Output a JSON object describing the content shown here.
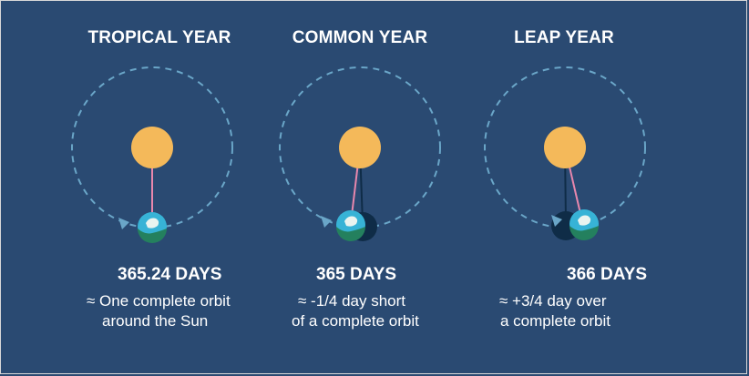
{
  "colors": {
    "background": "#2a4a72",
    "sun": "#f4b95a",
    "orbit": "#6aa6c8",
    "line": "#e887ad",
    "earth_ocean": "#37b3d6",
    "earth_land": "#24805e",
    "shadow_earth": "#0f2c47"
  },
  "panels": [
    {
      "title": "TROPICAL YEAR",
      "days": "365.24 DAYS",
      "desc_line1": "≈ One complete orbit",
      "desc_line2": "around the Sun",
      "sun_icon": "sun-icon",
      "earth_icon": "earth-icon"
    },
    {
      "title": "COMMON YEAR",
      "days": "365 DAYS",
      "desc_line1": "≈ -1/4 day short",
      "desc_line2": "of a complete orbit",
      "sun_icon": "sun-icon",
      "earth_icon": "earth-icon"
    },
    {
      "title": "LEAP YEAR",
      "days": "366 DAYS",
      "desc_line1": "≈ +3/4 day over",
      "desc_line2": "a complete orbit",
      "sun_icon": "sun-icon",
      "earth_icon": "earth-icon"
    }
  ]
}
